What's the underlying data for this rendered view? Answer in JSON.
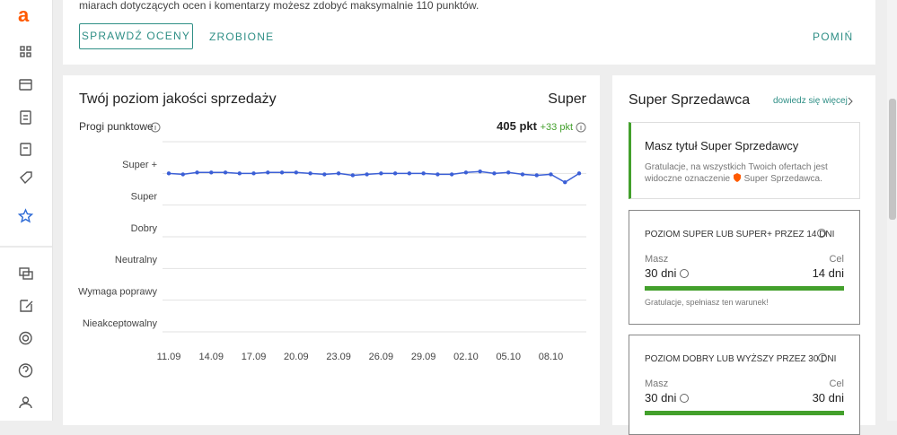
{
  "sidebar": {
    "logo": "a"
  },
  "banner": {
    "text": "miarach dotyczących ocen i komentarzy możesz zdobyć maksymalnie 110 punktów.",
    "primary_button": "SPRAWDŹ OCENY",
    "secondary_button": "ZROBIONE",
    "skip_button": "POMIŃ"
  },
  "quality": {
    "title": "Twój poziom jakości sprzedaży",
    "level": "Super",
    "thresholds_label": "Progi punktowe",
    "points": "405 pkt",
    "points_change": "+33 pkt"
  },
  "chart_data": {
    "type": "line",
    "color": "#3b5fd6",
    "categories": [
      "11.09",
      null,
      null,
      "14.09",
      null,
      null,
      "17.09",
      null,
      null,
      "20.09",
      null,
      null,
      "23.09",
      null,
      null,
      "26.09",
      null,
      null,
      "29.09",
      null,
      null,
      "02.10",
      null,
      null,
      "05.10",
      null,
      null,
      "08.10",
      null,
      null
    ],
    "values": [
      5.0,
      4.97,
      5.03,
      5.03,
      5.03,
      5.0,
      5.0,
      5.03,
      5.03,
      5.03,
      5.0,
      4.97,
      5.0,
      4.94,
      4.97,
      5.0,
      5.0,
      5.0,
      5.0,
      4.97,
      4.97,
      5.03,
      5.06,
      5.0,
      5.03,
      4.97,
      4.94,
      4.97,
      4.72,
      5.0
    ],
    "ylim": [
      0,
      6
    ],
    "yticks": [
      {
        "value": 0,
        "label": "Nieakceptowalny"
      },
      {
        "value": 1,
        "label": "Wymaga poprawy"
      },
      {
        "value": 2,
        "label": "Neutralny"
      },
      {
        "value": 3,
        "label": "Dobry"
      },
      {
        "value": 4,
        "label": "Super"
      },
      {
        "value": 5,
        "label": "Super +"
      }
    ],
    "grid": true
  },
  "super_seller": {
    "title": "Super Sprzedawca",
    "link": "dowiedz się więcej",
    "status": {
      "title": "Masz tytuł Super Sprzedawcy",
      "text": "Gratulacje, na wszystkich Twoich ofertach jest widoczne oznaczenie",
      "badge": "Super Sprzedawca."
    },
    "conditions": [
      {
        "title": "POZIOM SUPER LUB SUPER+ PRZEZ 14 DNI",
        "have_label": "Masz",
        "have": "30 dni",
        "goal_label": "Cel",
        "goal": "14 dni",
        "note": "Gratulacje, spełniasz ten warunek!"
      },
      {
        "title": "POZIOM DOBRY LUB WYŻSZY PRZEZ 30 DNI",
        "have_label": "Masz",
        "have": "30 dni",
        "goal_label": "Cel",
        "goal": "30 dni"
      }
    ]
  }
}
